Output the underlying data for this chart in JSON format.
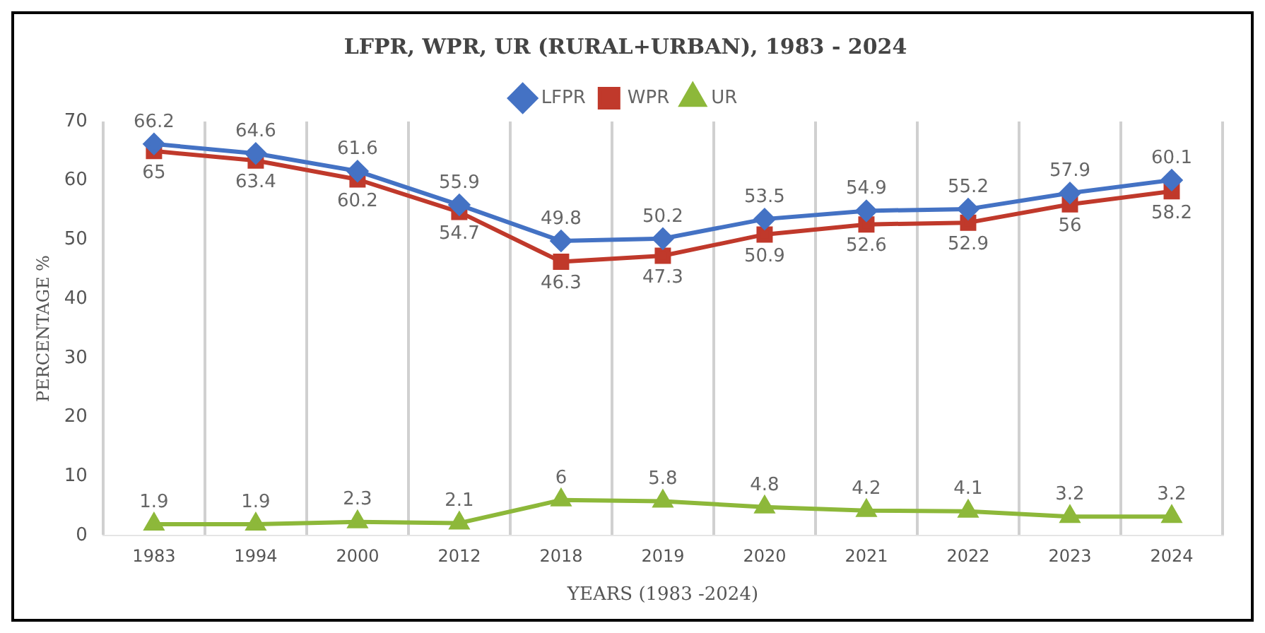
{
  "chart_data": {
    "type": "line",
    "title": "LFPR, WPR, UR (RURAL+URBAN), 1983 - 2024",
    "xlabel": "YEARS (1983 -2024)",
    "ylabel": "PERCENTAGE %",
    "categories": [
      "1983",
      "1994",
      "2000",
      "2012",
      "2018",
      "2019",
      "2020",
      "2021",
      "2022",
      "2023",
      "2024"
    ],
    "series": [
      {
        "name": "LFPR",
        "color": "#4472c4",
        "marker": "diamond",
        "values": [
          66.2,
          64.6,
          61.6,
          55.9,
          49.8,
          50.2,
          53.5,
          54.9,
          55.2,
          57.9,
          60.1
        ]
      },
      {
        "name": "WPR",
        "color": "#c0392b",
        "marker": "square",
        "values": [
          65,
          63.4,
          60.2,
          54.7,
          46.3,
          47.3,
          50.9,
          52.6,
          52.9,
          56,
          58.2
        ]
      },
      {
        "name": "UR",
        "color": "#8db83a",
        "marker": "triangle",
        "values": [
          1.9,
          1.9,
          2.3,
          2.1,
          6,
          5.8,
          4.8,
          4.2,
          4.1,
          3.2,
          3.2
        ]
      }
    ],
    "ylim": [
      0,
      70
    ],
    "yticks": [
      0,
      10,
      20,
      30,
      40,
      50,
      60,
      70
    ],
    "grid": "x",
    "legend": "top",
    "data_labels": true
  }
}
